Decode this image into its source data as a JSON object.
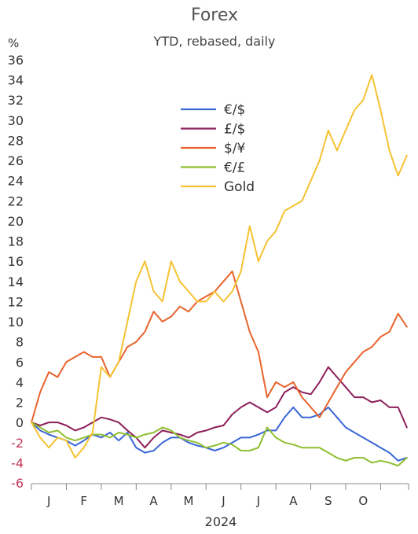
{
  "chart_data": {
    "type": "line",
    "title": "Forex",
    "subtitle": "YTD, rebased, daily",
    "ylabel": "%",
    "xlabel": "2024",
    "ylim": [
      -6,
      36
    ],
    "yticks": [
      "36",
      "34",
      "32",
      "30",
      "28",
      "26",
      "24",
      "22",
      "20",
      "18",
      "16",
      "14",
      "12",
      "10",
      "8",
      "6",
      "4",
      "2",
      "0",
      "-2",
      "-4",
      "-6"
    ],
    "months": [
      "J",
      "F",
      "M",
      "A",
      "M",
      "J",
      "J",
      "A",
      "S",
      "O"
    ],
    "x_end_month": 10.8,
    "grid": false,
    "legend_position": "top-center",
    "series": [
      {
        "name": "€/$",
        "color": "#3a66d6",
        "x": [
          0,
          0.25,
          0.5,
          0.75,
          1,
          1.25,
          1.5,
          1.75,
          2,
          2.25,
          2.5,
          2.75,
          3,
          3.25,
          3.5,
          3.75,
          4,
          4.25,
          4.5,
          4.75,
          5,
          5.25,
          5.5,
          5.75,
          6,
          6.25,
          6.5,
          6.75,
          7,
          7.25,
          7.5,
          7.75,
          8,
          8.25,
          8.5,
          8.75,
          9,
          9.25,
          9.5,
          9.75,
          10,
          10.25,
          10.5,
          10.75
        ],
        "y": [
          0,
          -0.8,
          -1.2,
          -1.5,
          -1.8,
          -2.3,
          -1.8,
          -1.2,
          -1.5,
          -1,
          -1.8,
          -1,
          -2.5,
          -3,
          -2.8,
          -2,
          -1.5,
          -1.5,
          -2,
          -2.3,
          -2.5,
          -2.8,
          -2.5,
          -2,
          -1.5,
          -1.5,
          -1.2,
          -0.8,
          -0.8,
          0.5,
          1.5,
          0.5,
          0.5,
          0.8,
          1.5,
          0.5,
          -0.5,
          -1,
          -1.5,
          -2,
          -2.5,
          -3,
          -3.8,
          -3.5
        ]
      },
      {
        "name": "£/$",
        "color": "#8c1f5a",
        "x": [
          0,
          0.25,
          0.5,
          0.75,
          1,
          1.25,
          1.5,
          1.75,
          2,
          2.25,
          2.5,
          2.75,
          3,
          3.25,
          3.5,
          3.75,
          4,
          4.25,
          4.5,
          4.75,
          5,
          5.25,
          5.5,
          5.75,
          6,
          6.25,
          6.5,
          6.75,
          7,
          7.25,
          7.5,
          7.75,
          8,
          8.25,
          8.5,
          8.75,
          9,
          9.25,
          9.5,
          9.75,
          10,
          10.25,
          10.5,
          10.75
        ],
        "y": [
          0,
          -0.3,
          0,
          0,
          -0.3,
          -0.8,
          -0.5,
          0,
          0.5,
          0.3,
          0,
          -0.8,
          -1.5,
          -2.5,
          -1.5,
          -0.8,
          -1,
          -1.2,
          -1.5,
          -1,
          -0.8,
          -0.5,
          -0.3,
          0.8,
          1.5,
          2,
          1.5,
          1,
          1.5,
          3,
          3.5,
          3,
          2.8,
          4,
          5.5,
          4.5,
          3.5,
          2.5,
          2.5,
          2,
          2.2,
          1.5,
          1.5,
          -0.5
        ]
      },
      {
        "name": "$/¥",
        "color": "#e8632c",
        "x": [
          0,
          0.25,
          0.5,
          0.75,
          1,
          1.25,
          1.5,
          1.75,
          2,
          2.25,
          2.5,
          2.75,
          3,
          3.25,
          3.5,
          3.75,
          4,
          4.25,
          4.5,
          4.75,
          5,
          5.25,
          5.5,
          5.75,
          6,
          6.25,
          6.5,
          6.75,
          7,
          7.25,
          7.5,
          7.75,
          8,
          8.25,
          8.5,
          8.75,
          9,
          9.25,
          9.5,
          9.75,
          10,
          10.25,
          10.5,
          10.75
        ],
        "y": [
          0,
          3,
          5,
          4.5,
          6,
          6.5,
          7,
          6.5,
          6.5,
          4.5,
          6,
          7.5,
          8,
          9,
          11,
          10,
          10.5,
          11.5,
          11,
          12,
          12.5,
          13,
          14,
          15,
          12,
          9,
          7,
          2.5,
          4,
          3.5,
          4,
          2.5,
          1.5,
          0.5,
          2,
          3.5,
          5,
          6,
          7,
          7.5,
          8.5,
          9,
          10.8,
          9.5
        ]
      },
      {
        "name": "€/£",
        "color": "#8fbf2f",
        "x": [
          0,
          0.25,
          0.5,
          0.75,
          1,
          1.25,
          1.5,
          1.75,
          2,
          2.25,
          2.5,
          2.75,
          3,
          3.25,
          3.5,
          3.75,
          4,
          4.25,
          4.5,
          4.75,
          5,
          5.25,
          5.5,
          5.75,
          6,
          6.25,
          6.5,
          6.75,
          7,
          7.25,
          7.5,
          7.75,
          8,
          8.25,
          8.5,
          8.75,
          9,
          9.25,
          9.5,
          9.75,
          10,
          10.25,
          10.5,
          10.75
        ],
        "y": [
          0,
          -0.5,
          -1,
          -0.8,
          -1.5,
          -1.8,
          -1.5,
          -1.2,
          -1.2,
          -1.5,
          -1,
          -1.2,
          -1.5,
          -1.2,
          -1,
          -0.5,
          -0.8,
          -1.5,
          -1.8,
          -2,
          -2.5,
          -2.3,
          -2,
          -2.2,
          -2.8,
          -2.8,
          -2.5,
          -0.5,
          -1.5,
          -2,
          -2.2,
          -2.5,
          -2.5,
          -2.5,
          -3,
          -3.5,
          -3.8,
          -3.5,
          -3.5,
          -4,
          -3.8,
          -4,
          -4.3,
          -3.5
        ]
      },
      {
        "name": "Gold",
        "color": "#f5c232",
        "x": [
          0,
          0.25,
          0.5,
          0.75,
          1,
          1.25,
          1.5,
          1.75,
          2,
          2.25,
          2.5,
          2.75,
          3,
          3.25,
          3.5,
          3.75,
          4,
          4.25,
          4.5,
          4.75,
          5,
          5.25,
          5.5,
          5.75,
          6,
          6.25,
          6.5,
          6.75,
          7,
          7.25,
          7.5,
          7.75,
          8,
          8.25,
          8.5,
          8.75,
          9,
          9.25,
          9.5,
          9.75,
          10,
          10.25,
          10.5,
          10.75
        ],
        "y": [
          0,
          -1.5,
          -2.5,
          -1.5,
          -1.8,
          -3.5,
          -2.5,
          -1,
          5.5,
          4.5,
          6,
          10,
          14,
          16,
          13,
          12,
          16,
          14,
          13,
          12,
          12,
          13,
          12,
          13,
          15,
          19.5,
          16,
          18,
          19,
          21,
          21.5,
          22,
          24,
          26,
          29,
          27,
          29,
          31,
          32,
          34.5,
          31,
          27,
          24.5,
          26.5
        ]
      }
    ]
  }
}
